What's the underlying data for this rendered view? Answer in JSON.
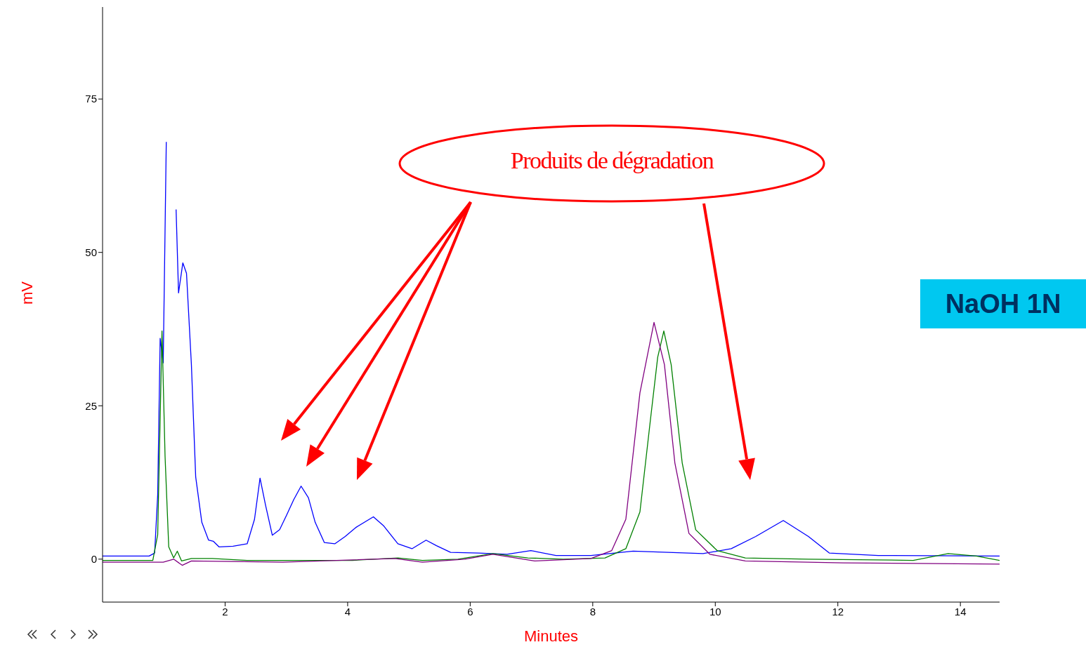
{
  "chart_data": {
    "type": "line",
    "xlabel": "Minutes",
    "ylabel": "mV",
    "xlim": [
      0,
      14.64
    ],
    "ylim": [
      -7,
      90
    ],
    "xticks": [
      2,
      4,
      6,
      8,
      10,
      12,
      14
    ],
    "yticks": [
      0,
      25,
      50,
      75
    ],
    "annotations": [
      "Produits de dégradation",
      "NaOH 1N"
    ],
    "series": [
      {
        "color": "#0000ff",
        "x": [
          0,
          0.76,
          0.85,
          0.9,
          0.94,
          0.99,
          1.04,
          1.08,
          1.14,
          1.2,
          1.24,
          1.31,
          1.37,
          1.45,
          1.52,
          1.62,
          1.73,
          1.81,
          1.9,
          2.13,
          2.36,
          2.48,
          2.57,
          2.66,
          2.77,
          2.89,
          3.0,
          3.12,
          3.24,
          3.36,
          3.47,
          3.62,
          3.79,
          3.96,
          4.14,
          4.42,
          4.59,
          4.82,
          5.05,
          5.28,
          5.45,
          5.68,
          6.14,
          6.6,
          6.99,
          7.4,
          7.97,
          8.66,
          9.23,
          9.8,
          10.26,
          10.66,
          11.11,
          11.52,
          11.86,
          12.66,
          14.64
        ],
        "values": [
          0.5,
          0.5,
          1,
          10.5,
          36,
          32,
          68,
          null,
          null,
          57,
          43.4,
          48.3,
          46.6,
          31.7,
          13.4,
          6,
          3.1,
          2.9,
          2,
          2.1,
          2.5,
          6.5,
          13.2,
          8.8,
          3.9,
          4.8,
          7.1,
          9.7,
          11.9,
          10,
          6,
          2.7,
          2.5,
          3.7,
          5.2,
          6.9,
          5.4,
          2.5,
          1.7,
          3.1,
          2.2,
          1.1,
          1.0,
          0.8,
          1.4,
          0.6,
          0.6,
          1.3,
          1.1,
          0.9,
          1.7,
          3.7,
          6.3,
          3.7,
          1.0,
          0.6,
          0.5
        ]
      },
      {
        "color": "#008000",
        "x": [
          0,
          0.82,
          0.9,
          0.97,
          1.02,
          1.08,
          1.16,
          1.22,
          1.29,
          1.45,
          1.79,
          2.36,
          4.08,
          4.82,
          5.22,
          5.8,
          6.37,
          6.94,
          7.52,
          8.2,
          8.54,
          8.77,
          8.94,
          9.06,
          9.16,
          9.28,
          9.46,
          9.68,
          10.03,
          10.49,
          11.52,
          13.23,
          13.8,
          14.26,
          14.64
        ],
        "values": [
          -0.2,
          -0.2,
          4,
          37.2,
          16.8,
          2,
          0.2,
          1.3,
          -0.3,
          0.1,
          0.1,
          -0.2,
          -0.2,
          0.2,
          -0.2,
          0,
          0.9,
          0.2,
          0,
          0.2,
          1.7,
          7.7,
          22.6,
          32.9,
          37.2,
          31.7,
          15.7,
          4.8,
          1.4,
          0.2,
          0,
          -0.2,
          0.9,
          0.5,
          -0.2
        ]
      },
      {
        "color": "#800080",
        "x": [
          0,
          0.99,
          1.16,
          1.3,
          1.45,
          2.94,
          4.77,
          5.22,
          5.91,
          6.37,
          7.05,
          7.97,
          8.31,
          8.54,
          8.77,
          9.0,
          9.17,
          9.34,
          9.57,
          9.91,
          10.49,
          12.09,
          14.64
        ],
        "values": [
          -0.5,
          -0.5,
          0,
          -1,
          -0.3,
          -0.5,
          0.1,
          -0.5,
          0,
          0.8,
          -0.3,
          0.1,
          1.4,
          6.5,
          27.1,
          38.6,
          31.7,
          15.7,
          4.2,
          0.8,
          -0.3,
          -0.6,
          -0.8
        ]
      }
    ]
  }
}
